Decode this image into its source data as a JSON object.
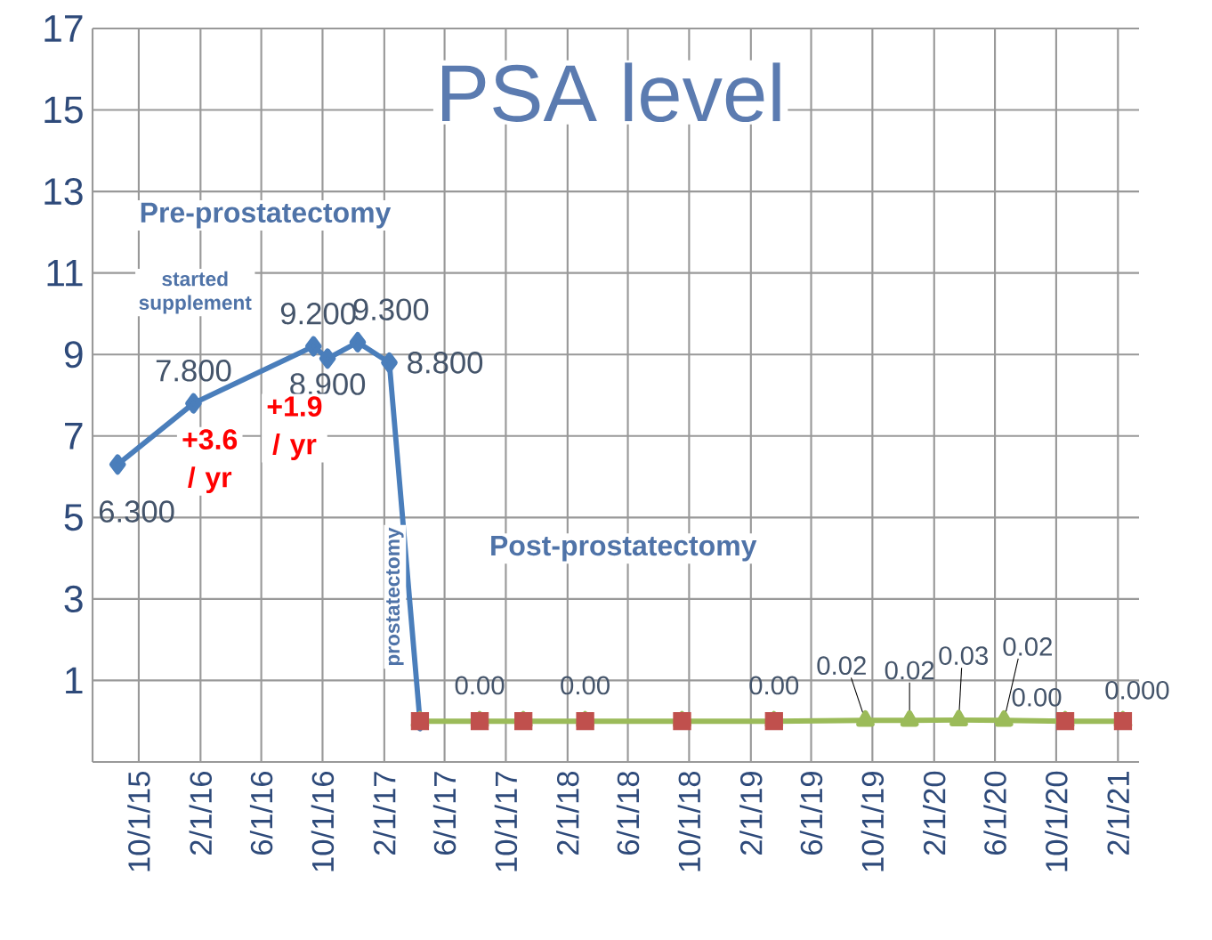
{
  "chart_data": {
    "type": "line",
    "title": "PSA level",
    "xlim": [
      "2015-07-01",
      "2021-03-15"
    ],
    "xticks": [
      {
        "value": "2015-10-01",
        "label": "10/1/15"
      },
      {
        "value": "2016-02-01",
        "label": "2/1/16"
      },
      {
        "value": "2016-06-01",
        "label": "6/1/16"
      },
      {
        "value": "2016-10-01",
        "label": "10/1/16"
      },
      {
        "value": "2017-02-01",
        "label": "2/1/17"
      },
      {
        "value": "2017-06-01",
        "label": "6/1/17"
      },
      {
        "value": "2017-10-01",
        "label": "10/1/17"
      },
      {
        "value": "2018-02-01",
        "label": "2/1/18"
      },
      {
        "value": "2018-06-01",
        "label": "6/1/18"
      },
      {
        "value": "2018-10-01",
        "label": "10/1/18"
      },
      {
        "value": "2019-02-01",
        "label": "2/1/19"
      },
      {
        "value": "2019-06-01",
        "label": "6/1/19"
      },
      {
        "value": "2019-10-01",
        "label": "10/1/19"
      },
      {
        "value": "2020-02-01",
        "label": "2/1/20"
      },
      {
        "value": "2020-06-01",
        "label": "6/1/20"
      },
      {
        "value": "2020-10-01",
        "label": "10/1/20"
      },
      {
        "value": "2021-02-01",
        "label": "2/1/21"
      }
    ],
    "ylim": [
      -1,
      17
    ],
    "yticks": [
      1,
      3,
      5,
      7,
      9,
      11,
      13,
      15,
      17
    ],
    "grid": true,
    "line_style": "solid",
    "series": [
      {
        "color": "#4a7ebb",
        "marker": "diamond",
        "x": [
          "2015-08-20",
          "2016-01-18",
          "2016-09-13",
          "2016-10-11",
          "2016-12-10",
          "2017-02-11",
          "2017-04-13"
        ],
        "values": [
          6.3,
          7.8,
          9.2,
          8.9,
          9.3,
          8.8,
          0
        ],
        "value_labels": [
          "6.300",
          "7.800",
          "9.200",
          "8.900",
          "9.300",
          "8.800",
          null
        ]
      },
      {
        "color": "#9bbb59",
        "marker": "triangle",
        "x": [
          "2017-04-13",
          "2017-08-10",
          "2017-11-05",
          "2018-03-08",
          "2018-09-17",
          "2019-03-19",
          "2019-09-17",
          "2019-12-14",
          "2020-03-21",
          "2020-06-19",
          "2020-10-19",
          "2021-02-11"
        ],
        "values": [
          0,
          0,
          0,
          0,
          0,
          0,
          0.02,
          0.02,
          0.03,
          0.02,
          0,
          0
        ],
        "value_labels": [
          null,
          null,
          null,
          null,
          null,
          null,
          "0.02",
          "0.02",
          "0.03",
          "0.02",
          null,
          null
        ]
      },
      {
        "type": "scatter",
        "color": "#c0504d",
        "marker": "square",
        "x": [
          "2017-04-13",
          "2017-08-10",
          "2017-11-05",
          "2018-03-08",
          "2018-09-17",
          "2019-03-19",
          "2020-10-19",
          "2021-02-11"
        ],
        "values": [
          0,
          0,
          0,
          0,
          0,
          0,
          0,
          0
        ],
        "value_labels": [
          null,
          "0.00",
          null,
          "0.00",
          null,
          "0.00",
          "0.00",
          "0.000"
        ]
      }
    ],
    "annotations": [
      "Pre-prostatectomy",
      "started supplement",
      "+3.6 / yr",
      "+1.9 / yr",
      "prostatectomy",
      "Post-prostatectomy"
    ]
  }
}
